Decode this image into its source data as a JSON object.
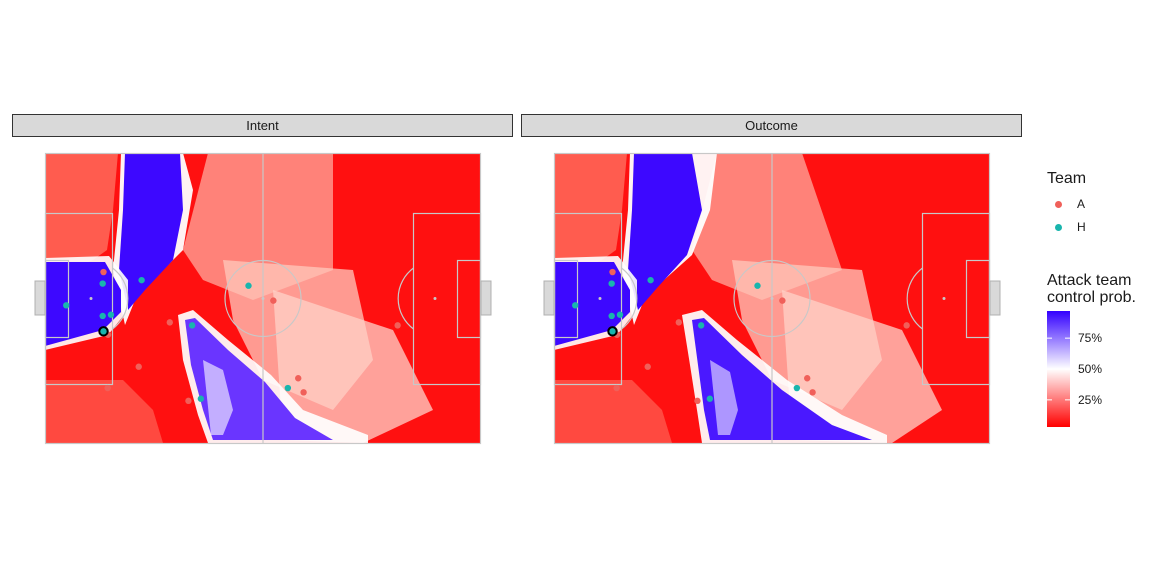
{
  "colors": {
    "attack_low": "#ff0000",
    "attack_mid": "#ffffff",
    "attack_high": "#3300ff",
    "team_a": "#f0605a",
    "team_h": "#19b5ad"
  },
  "chart_data": [
    {
      "type": "heatmap",
      "panel": "Intent",
      "ball_carrier": {
        "team": "H",
        "x": 14,
        "y": 26.3
      },
      "players": [
        {
          "team": "A",
          "x": 14,
          "y": 40.2
        },
        {
          "team": "A",
          "x": 15.1,
          "y": 25.5
        },
        {
          "team": "A",
          "x": 15,
          "y": 13
        },
        {
          "team": "A",
          "x": 22.5,
          "y": 18
        },
        {
          "team": "A",
          "x": 30,
          "y": 28.4
        },
        {
          "team": "A",
          "x": 34.5,
          "y": 10
        },
        {
          "team": "A",
          "x": 55,
          "y": 33.5
        },
        {
          "team": "A",
          "x": 61,
          "y": 15.3
        },
        {
          "team": "A",
          "x": 62.3,
          "y": 12
        },
        {
          "team": "A",
          "x": 85,
          "y": 27.7
        },
        {
          "team": "H",
          "x": 5,
          "y": 32.4
        },
        {
          "team": "H",
          "x": 13.8,
          "y": 37.5
        },
        {
          "team": "H",
          "x": 13.8,
          "y": 29.9
        },
        {
          "team": "H",
          "x": 15.8,
          "y": 30.2
        },
        {
          "team": "H",
          "x": 23.2,
          "y": 38.3
        },
        {
          "team": "H",
          "x": 35.4,
          "y": 27.7
        },
        {
          "team": "H",
          "x": 37.5,
          "y": 10.5
        },
        {
          "team": "H",
          "x": 49,
          "y": 37
        },
        {
          "team": "H",
          "x": 58.5,
          "y": 13
        }
      ]
    },
    {
      "type": "heatmap",
      "panel": "Outcome",
      "ball_carrier": {
        "team": "H",
        "x": 14,
        "y": 26.3
      },
      "players": [
        {
          "team": "A",
          "x": 14,
          "y": 40.2
        },
        {
          "team": "A",
          "x": 15.1,
          "y": 25.5
        },
        {
          "team": "A",
          "x": 15,
          "y": 13
        },
        {
          "team": "A",
          "x": 22.5,
          "y": 18
        },
        {
          "team": "A",
          "x": 30,
          "y": 28.4
        },
        {
          "team": "A",
          "x": 34.5,
          "y": 10
        },
        {
          "team": "A",
          "x": 55,
          "y": 33.5
        },
        {
          "team": "A",
          "x": 61,
          "y": 15.3
        },
        {
          "team": "A",
          "x": 62.3,
          "y": 12
        },
        {
          "team": "A",
          "x": 85,
          "y": 27.7
        },
        {
          "team": "H",
          "x": 5,
          "y": 32.4
        },
        {
          "team": "H",
          "x": 13.8,
          "y": 37.5
        },
        {
          "team": "H",
          "x": 13.8,
          "y": 29.9
        },
        {
          "team": "H",
          "x": 15.8,
          "y": 30.2
        },
        {
          "team": "H",
          "x": 23.2,
          "y": 38.3
        },
        {
          "team": "H",
          "x": 35.4,
          "y": 27.7
        },
        {
          "team": "H",
          "x": 37.5,
          "y": 10.5
        },
        {
          "team": "H",
          "x": 49,
          "y": 37
        },
        {
          "team": "H",
          "x": 58.5,
          "y": 13
        }
      ]
    }
  ],
  "facets": [
    "Intent",
    "Outcome"
  ],
  "legend": {
    "team_title": "Team",
    "teams": [
      "A",
      "H"
    ],
    "fill_title_line1": "Attack team",
    "fill_title_line2": "control prob.",
    "fill_breaks": [
      0.75,
      0.5,
      0.25
    ],
    "fill_labels": [
      "75%",
      "50%",
      "25%"
    ]
  }
}
